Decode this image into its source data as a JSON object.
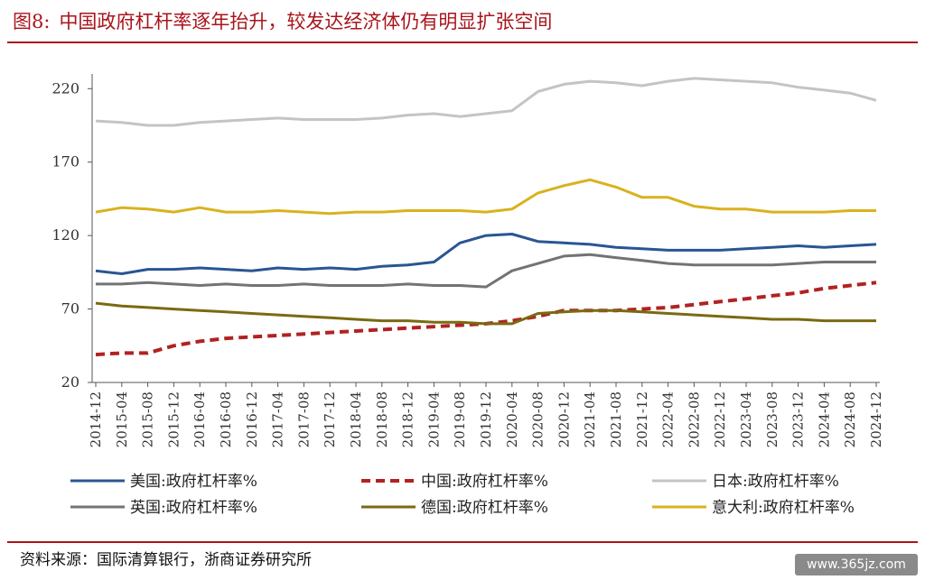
{
  "figure": {
    "number": "图8:",
    "title": "中国政府杠杆率逐年抬升，较发达经济体仍有明显扩张空间"
  },
  "source": "资料来源：国际清算银行，浙商证券研究所",
  "watermark": "www.365jz.com",
  "chart_data": {
    "type": "line",
    "title": "",
    "xlabel": "",
    "ylabel": "",
    "ylim": [
      20,
      230
    ],
    "yticks": [
      20,
      70,
      120,
      170,
      220
    ],
    "grid": false,
    "legend_position": "bottom",
    "x": [
      "2014-12",
      "2015-04",
      "2015-08",
      "2015-12",
      "2016-04",
      "2016-08",
      "2016-12",
      "2017-04",
      "2017-08",
      "2017-12",
      "2018-04",
      "2018-08",
      "2018-12",
      "2019-04",
      "2019-08",
      "2019-12",
      "2020-04",
      "2020-08",
      "2020-12",
      "2021-04",
      "2021-08",
      "2021-12",
      "2022-04",
      "2022-08",
      "2022-12",
      "2023-04",
      "2023-08",
      "2023-12",
      "2024-04",
      "2024-08",
      "2024-12"
    ],
    "series": [
      {
        "name": "美国:政府杠杆率%",
        "color": "#2a5592",
        "dash": false,
        "values": [
          96,
          94,
          97,
          97,
          98,
          97,
          96,
          98,
          97,
          98,
          97,
          99,
          100,
          102,
          115,
          120,
          121,
          116,
          115,
          114,
          112,
          111,
          110,
          110,
          110,
          111,
          112,
          113,
          112,
          113,
          114
        ]
      },
      {
        "name": "中国:政府杠杆率%",
        "color": "#b22222",
        "dash": true,
        "values": [
          39,
          40,
          40,
          45,
          48,
          50,
          51,
          52,
          53,
          54,
          55,
          56,
          57,
          58,
          59,
          60,
          62,
          65,
          69,
          69,
          69,
          70,
          71,
          73,
          75,
          77,
          79,
          81,
          84,
          86,
          88
        ]
      },
      {
        "name": "日本:政府杠杆率%",
        "color": "#c4c4c4",
        "dash": false,
        "values": [
          198,
          197,
          195,
          195,
          197,
          198,
          199,
          200,
          199,
          199,
          199,
          200,
          202,
          203,
          201,
          203,
          205,
          218,
          223,
          225,
          224,
          222,
          225,
          227,
          226,
          225,
          224,
          221,
          219,
          217,
          212
        ]
      },
      {
        "name": "英国:政府杠杆率%",
        "color": "#737373",
        "dash": false,
        "values": [
          87,
          87,
          88,
          87,
          86,
          87,
          86,
          86,
          87,
          86,
          86,
          86,
          87,
          86,
          86,
          85,
          96,
          101,
          106,
          107,
          105,
          103,
          101,
          100,
          100,
          100,
          100,
          101,
          102,
          102,
          102
        ]
      },
      {
        "name": "德国:政府杠杆率%",
        "color": "#7a6a10",
        "dash": false,
        "values": [
          74,
          72,
          71,
          70,
          69,
          68,
          67,
          66,
          65,
          64,
          63,
          62,
          62,
          61,
          61,
          60,
          60,
          67,
          68,
          69,
          69,
          68,
          67,
          66,
          65,
          64,
          63,
          63,
          62,
          62,
          62
        ]
      },
      {
        "name": "意大利:政府杠杆率%",
        "color": "#d9b21e",
        "dash": false,
        "values": [
          136,
          139,
          138,
          136,
          139,
          136,
          136,
          137,
          136,
          135,
          136,
          136,
          137,
          137,
          137,
          136,
          138,
          149,
          154,
          158,
          153,
          146,
          146,
          140,
          138,
          138,
          136,
          136,
          136,
          137,
          137
        ]
      }
    ]
  }
}
